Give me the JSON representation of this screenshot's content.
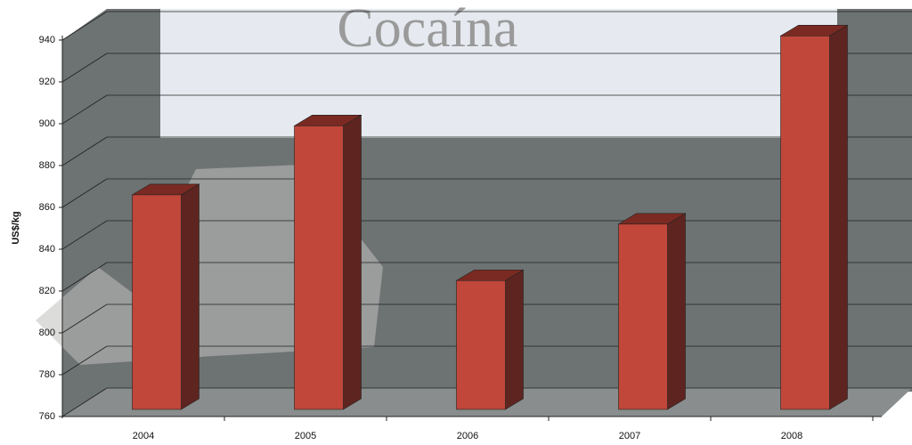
{
  "chart_data": {
    "type": "bar3d",
    "background_title": "Cocaína",
    "y_label": "US$/kg",
    "categories": [
      "2004",
      "2005",
      "2006",
      "2007",
      "2008"
    ],
    "values": [
      866,
      899,
      825,
      852,
      942
    ],
    "color": "#c0473a",
    "ylim": [
      760,
      940
    ],
    "yticks": [
      760,
      780,
      800,
      820,
      840,
      860,
      880,
      900,
      920,
      940
    ],
    "grid": true
  }
}
